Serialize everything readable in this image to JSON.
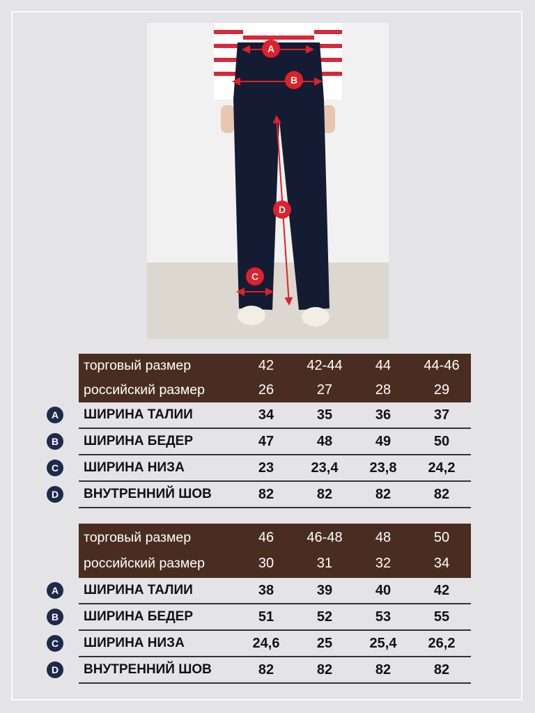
{
  "colors": {
    "header_bg": "#4a2d21",
    "badge": "#1d2a4a",
    "marker": "#e0202a"
  },
  "photo": {
    "markers": [
      "A",
      "B",
      "C",
      "D"
    ]
  },
  "tables": [
    {
      "header": [
        {
          "label": "торговый размер",
          "values": [
            "42",
            "42-44",
            "44",
            "44-46"
          ]
        },
        {
          "label": "российский размер",
          "values": [
            "26",
            "27",
            "28",
            "29"
          ]
        }
      ],
      "rows": [
        {
          "badge": "A",
          "label": "ШИРИНА ТАЛИИ",
          "values": [
            "34",
            "35",
            "36",
            "37"
          ]
        },
        {
          "badge": "B",
          "label": "ШИРИНА БЕДЕР",
          "values": [
            "47",
            "48",
            "49",
            "50"
          ]
        },
        {
          "badge": "C",
          "label": "ШИРИНА НИЗА",
          "values": [
            "23",
            "23,4",
            "23,8",
            "24,2"
          ]
        },
        {
          "badge": "D",
          "label": "ВНУТРЕННИЙ ШОВ",
          "values": [
            "82",
            "82",
            "82",
            "82"
          ]
        }
      ]
    },
    {
      "header": [
        {
          "label": "торговый размер",
          "values": [
            "46",
            "46-48",
            "48",
            "50"
          ]
        },
        {
          "label": "российский размер",
          "values": [
            "30",
            "31",
            "32",
            "34"
          ]
        }
      ],
      "rows": [
        {
          "badge": "A",
          "label": "ШИРИНА ТАЛИИ",
          "values": [
            "38",
            "39",
            "40",
            "42"
          ]
        },
        {
          "badge": "B",
          "label": "ШИРИНА БЕДЕР",
          "values": [
            "51",
            "52",
            "53",
            "55"
          ]
        },
        {
          "badge": "C",
          "label": "ШИРИНА НИЗА",
          "values": [
            "24,6",
            "25",
            "25,4",
            "26,2"
          ]
        },
        {
          "badge": "D",
          "label": "ВНУТРЕННИЙ ШОВ",
          "values": [
            "82",
            "82",
            "82",
            "82"
          ]
        }
      ]
    }
  ]
}
